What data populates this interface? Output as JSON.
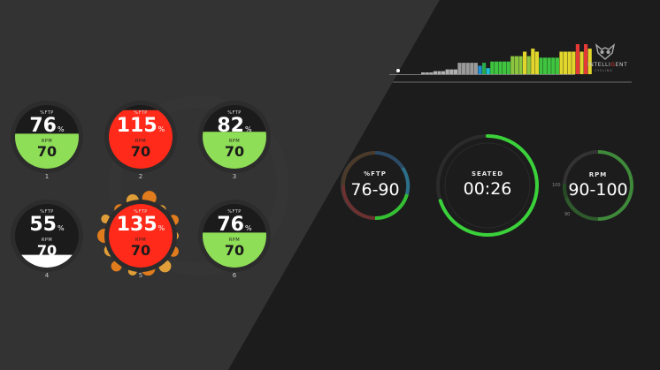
{
  "brand": {
    "name_prefix": "INTELLI",
    "name_mid": "G",
    "name_suffix": "ENT",
    "sub": "CYCLING",
    "accent": "#e63b2e"
  },
  "colors": {
    "green": "#8fde57",
    "red": "#ff2a1a",
    "white": "#ffffff",
    "ring": "#2b2b2b",
    "bright_green": "#3ad13a"
  },
  "gauges": [
    {
      "ftp_label": "%FTP",
      "ftp": "76",
      "pct": "%",
      "rpm_label": "RPM",
      "rpm": "70",
      "index": "1",
      "fill_color": "green",
      "fill_level": 0.55,
      "effect": ""
    },
    {
      "ftp_label": "%FTP",
      "ftp": "115",
      "pct": "%",
      "rpm_label": "RPM",
      "rpm": "70",
      "index": "2",
      "fill_color": "red",
      "fill_level": 0.92,
      "effect": ""
    },
    {
      "ftp_label": "%FTP",
      "ftp": "82",
      "pct": "%",
      "rpm_label": "RPM",
      "rpm": "70",
      "index": "3",
      "fill_color": "green",
      "fill_level": 0.58,
      "effect": ""
    },
    {
      "ftp_label": "%FTP",
      "ftp": "55",
      "pct": "%",
      "rpm_label": "RPM",
      "rpm": "70",
      "index": "4",
      "fill_color": "white",
      "fill_level": 0.2,
      "effect": ""
    },
    {
      "ftp_label": "%FTP",
      "ftp": "135",
      "pct": "%",
      "rpm_label": "RPM",
      "rpm": "70",
      "index": "5",
      "fill_color": "red",
      "fill_level": 1.0,
      "effect": "fire"
    },
    {
      "ftp_label": "%FTP",
      "ftp": "76",
      "pct": "%",
      "rpm_label": "RPM",
      "rpm": "70",
      "index": "6",
      "fill_color": "green",
      "fill_level": 0.55,
      "effect": ""
    }
  ],
  "ftp_target": {
    "label": "%FTP",
    "value": "76-90"
  },
  "timer": {
    "label": "SEATED",
    "value": "00:26",
    "progress": 0.7
  },
  "rpm_target": {
    "label": "RPM",
    "value": "90-100",
    "tick_high": "100",
    "tick_low": "90"
  },
  "profile_bars": [
    {
      "h": 0.06,
      "c": "#b0b0b0"
    },
    {
      "h": 0.06,
      "c": "#b0b0b0"
    },
    {
      "h": 0.06,
      "c": "#b0b0b0"
    },
    {
      "h": 0.1,
      "c": "#b0b0b0"
    },
    {
      "h": 0.1,
      "c": "#b0b0b0"
    },
    {
      "h": 0.1,
      "c": "#b0b0b0"
    },
    {
      "h": 0.16,
      "c": "#b0b0b0"
    },
    {
      "h": 0.16,
      "c": "#b0b0b0"
    },
    {
      "h": 0.16,
      "c": "#b0b0b0"
    },
    {
      "h": 0.38,
      "c": "#9a9a9a"
    },
    {
      "h": 0.38,
      "c": "#9a9a9a"
    },
    {
      "h": 0.38,
      "c": "#9a9a9a"
    },
    {
      "h": 0.38,
      "c": "#9a9a9a"
    },
    {
      "h": 0.38,
      "c": "#9a9a9a"
    },
    {
      "h": 0.28,
      "c": "#1f8fd6"
    },
    {
      "h": 0.38,
      "c": "#2aa84a"
    },
    {
      "h": 0.2,
      "c": "#1bbfd8"
    },
    {
      "h": 0.42,
      "c": "#3ec43e"
    },
    {
      "h": 0.42,
      "c": "#3ec43e"
    },
    {
      "h": 0.42,
      "c": "#3ec43e"
    },
    {
      "h": 0.42,
      "c": "#3ec43e"
    },
    {
      "h": 0.42,
      "c": "#3ec43e"
    },
    {
      "h": 0.6,
      "c": "#8cc63f"
    },
    {
      "h": 0.6,
      "c": "#8cc63f"
    },
    {
      "h": 0.6,
      "c": "#8cc63f"
    },
    {
      "h": 0.75,
      "c": "#e2d62c"
    },
    {
      "h": 0.6,
      "c": "#8cc63f"
    },
    {
      "h": 0.85,
      "c": "#e2d62c"
    },
    {
      "h": 0.75,
      "c": "#e2d62c"
    },
    {
      "h": 0.55,
      "c": "#3ec43e"
    },
    {
      "h": 0.55,
      "c": "#3ec43e"
    },
    {
      "h": 0.55,
      "c": "#3ec43e"
    },
    {
      "h": 0.55,
      "c": "#3ec43e"
    },
    {
      "h": 0.55,
      "c": "#3ec43e"
    },
    {
      "h": 0.75,
      "c": "#e2d62c"
    },
    {
      "h": 0.75,
      "c": "#e2d62c"
    },
    {
      "h": 0.75,
      "c": "#e2d62c"
    },
    {
      "h": 0.75,
      "c": "#e2d62c"
    },
    {
      "h": 1.0,
      "c": "#e53935"
    },
    {
      "h": 0.75,
      "c": "#e2d62c"
    },
    {
      "h": 1.0,
      "c": "#e53935"
    },
    {
      "h": 0.85,
      "c": "#e2d62c"
    }
  ],
  "playhead": {
    "position": 0.0
  }
}
